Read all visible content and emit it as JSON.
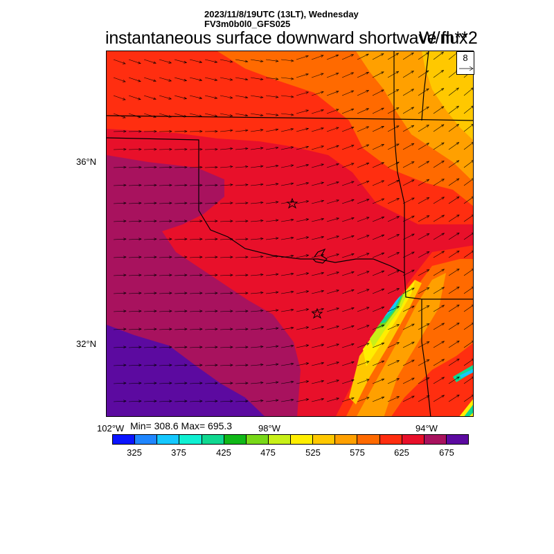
{
  "header": {
    "date_line": "2023/11/8/19UTC (13LT), Wednesday",
    "model_line": "FV3m0b0l0_GFS025",
    "title": "instantaneous surface downward shortwave flux",
    "units": "W/m**2"
  },
  "stats": {
    "text": "Min= 308.6 Max= 695.3",
    "min": 308.6,
    "max": 695.3
  },
  "reference_vector": {
    "label": "8"
  },
  "axes": {
    "lat_labels": [
      "36°N",
      "32°N"
    ],
    "lon_labels": [
      "102°W",
      "98°W",
      "94°W"
    ]
  },
  "colorbar": {
    "colors": [
      "#0a14ff",
      "#1f86ff",
      "#15c8ff",
      "#10f0d2",
      "#10d890",
      "#10b818",
      "#78d818",
      "#c8f018",
      "#ffee00",
      "#ffc800",
      "#ffa000",
      "#ff6a00",
      "#ff2e10",
      "#e8102a",
      "#a8125e",
      "#5c0aa0"
    ],
    "labels": [
      "325",
      "375",
      "425",
      "475",
      "525",
      "575",
      "625",
      "675"
    ]
  },
  "map": {
    "markers": [
      "star-1",
      "star-2"
    ]
  }
}
